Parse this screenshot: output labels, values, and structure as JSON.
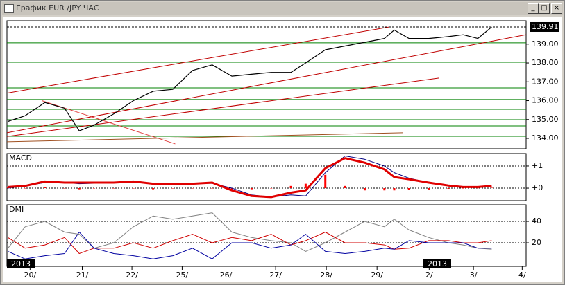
{
  "window": {
    "title": "График EUR /JPY ЧАС"
  },
  "chart_data": [
    {
      "type": "line",
      "x": [
        -0.45,
        -0.1,
        0.3,
        0.7,
        1.0,
        1.3,
        1.7,
        2.1,
        2.5,
        2.9,
        3.3,
        3.7,
        4.1,
        4.5,
        4.9,
        5.3,
        5.6,
        6.0,
        6.4,
        6.8,
        7.2,
        7.4,
        7.7,
        8.1,
        8.5,
        8.8,
        9.1,
        9.38
      ],
      "series": [
        {
          "color": "#000000",
          "values": [
            134.9,
            135.2,
            135.9,
            135.6,
            134.4,
            134.7,
            135.3,
            136.0,
            136.5,
            136.6,
            137.6,
            137.9,
            137.3,
            137.4,
            137.5,
            137.5,
            138.0,
            138.7,
            138.9,
            139.1,
            139.3,
            139.75,
            139.3,
            139.3,
            139.4,
            139.5,
            139.3,
            139.91
          ]
        }
      ],
      "xlim": [
        -0.47,
        10.08
      ],
      "ylim": [
        133.45,
        140.24
      ],
      "yticks": [
        {
          "value": 134,
          "label": "134.00"
        },
        {
          "value": 135,
          "label": "135.00"
        },
        {
          "value": 136,
          "label": "136.00"
        },
        {
          "value": 137,
          "label": "137.00"
        },
        {
          "value": 138,
          "label": "138.00"
        },
        {
          "value": 139,
          "label": "139.00"
        }
      ],
      "last_value": 139.91,
      "levels": [
        139.07,
        138.04,
        136.68,
        136.06,
        135.54,
        134.99,
        134.66,
        134.11
      ],
      "level_color": "#008000",
      "trend_lines": [
        {
          "color": "#c00000",
          "x": [
            -0.47,
            7.3
          ],
          "y": [
            136.4,
            139.91
          ]
        },
        {
          "color": "#c00000",
          "x": [
            -0.47,
            10.08
          ],
          "y": [
            134.3,
            139.5
          ]
        },
        {
          "color": "#c00000",
          "x": [
            -0.47,
            8.31
          ],
          "y": [
            134.1,
            137.2
          ]
        },
        {
          "color": "#e04040",
          "x": [
            0.24,
            2.95
          ],
          "y": [
            136.0,
            133.71
          ]
        },
        {
          "color": "#a05020",
          "x": [
            -0.47,
            7.57
          ],
          "y": [
            133.82,
            134.3
          ]
        }
      ]
    },
    {
      "type": "line",
      "title": "MACD",
      "x": [
        -0.45,
        -0.1,
        0.3,
        0.7,
        1.0,
        1.3,
        1.7,
        2.1,
        2.5,
        2.9,
        3.3,
        3.7,
        4.1,
        4.5,
        4.9,
        5.3,
        5.6,
        6.0,
        6.4,
        6.8,
        7.2,
        7.4,
        7.7,
        8.1,
        8.5,
        8.8,
        9.1,
        9.38
      ],
      "series": [
        {
          "color": "#ff0000",
          "style": "bar",
          "values": [
            0.05,
            0.0,
            0.05,
            0.0,
            -0.05,
            0.0,
            0.0,
            0.0,
            -0.05,
            0.0,
            0.0,
            0.0,
            -0.1,
            -0.05,
            0.0,
            0.1,
            0.2,
            0.6,
            0.1,
            -0.1,
            -0.1,
            -0.1,
            -0.08,
            -0.06,
            -0.03,
            0.0,
            0.01,
            0.02
          ]
        },
        {
          "color": "#000080",
          "width": 1,
          "values": [
            0.0,
            0.1,
            0.25,
            0.25,
            0.2,
            0.22,
            0.25,
            0.28,
            0.22,
            0.2,
            0.2,
            0.22,
            0.0,
            -0.3,
            -0.4,
            -0.3,
            -0.35,
            0.7,
            1.45,
            1.3,
            1.0,
            0.7,
            0.45,
            0.25,
            0.12,
            0.06,
            0.05,
            0.06
          ]
        },
        {
          "color": "#e00000",
          "width": 3,
          "values": [
            0.05,
            0.1,
            0.3,
            0.25,
            0.25,
            0.25,
            0.25,
            0.3,
            0.2,
            0.2,
            0.2,
            0.25,
            -0.1,
            -0.35,
            -0.4,
            -0.2,
            -0.1,
            0.9,
            1.35,
            1.15,
            0.85,
            0.5,
            0.4,
            0.25,
            0.12,
            0.05,
            0.05,
            0.1
          ]
        }
      ],
      "xlim": [
        -0.47,
        10.08
      ],
      "ylim": [
        -0.56,
        1.56
      ],
      "yticks": [
        {
          "value": 1,
          "label": "+1"
        },
        {
          "value": 0,
          "label": "+0"
        }
      ],
      "grid": true
    },
    {
      "type": "line",
      "title": "DMI",
      "x": [
        -0.45,
        -0.1,
        0.3,
        0.7,
        1.0,
        1.3,
        1.7,
        2.1,
        2.5,
        2.9,
        3.3,
        3.7,
        4.1,
        4.5,
        4.9,
        5.3,
        5.6,
        6.0,
        6.4,
        6.8,
        7.2,
        7.4,
        7.7,
        8.1,
        8.5,
        8.8,
        9.1,
        9.38
      ],
      "series": [
        {
          "color": "#808080",
          "width": 1,
          "values": [
            15,
            35,
            40,
            30,
            28,
            15,
            20,
            35,
            45,
            42,
            45,
            48,
            30,
            25,
            22,
            20,
            12,
            20,
            30,
            40,
            35,
            42,
            32,
            25,
            20,
            18,
            15,
            14
          ]
        },
        {
          "color": "#d00000",
          "width": 1,
          "values": [
            25,
            15,
            18,
            25,
            10,
            15,
            15,
            20,
            15,
            22,
            28,
            20,
            25,
            22,
            28,
            18,
            22,
            30,
            20,
            20,
            18,
            14,
            15,
            22,
            22,
            20,
            20,
            22
          ]
        },
        {
          "color": "#0000a0",
          "width": 1,
          "values": [
            12,
            5,
            8,
            10,
            30,
            15,
            10,
            8,
            5,
            8,
            15,
            5,
            20,
            20,
            15,
            18,
            28,
            12,
            10,
            12,
            15,
            14,
            22,
            20,
            20,
            20,
            15,
            15
          ]
        }
      ],
      "xlim": [
        -0.47,
        10.08
      ],
      "ylim": [
        -1.9,
        55.5
      ],
      "yticks": [
        40,
        20
      ],
      "grid": true,
      "xticks": [
        {
          "value": 0,
          "label": "20/"
        },
        {
          "value": 1.06,
          "label": "21/"
        },
        {
          "value": 2.07,
          "label": "22/"
        },
        {
          "value": 3.09,
          "label": "25/"
        },
        {
          "value": 3.98,
          "label": "26/"
        },
        {
          "value": 4.99,
          "label": "27/"
        },
        {
          "value": 6.02,
          "label": "28/"
        },
        {
          "value": 7.05,
          "label": "29/"
        },
        {
          "value": 8.11,
          "label": "2/"
        },
        {
          "value": 9.01,
          "label": "3/"
        },
        {
          "value": 10,
          "label": "4/"
        }
      ],
      "year_labels": [
        "2013",
        "2013"
      ]
    }
  ]
}
